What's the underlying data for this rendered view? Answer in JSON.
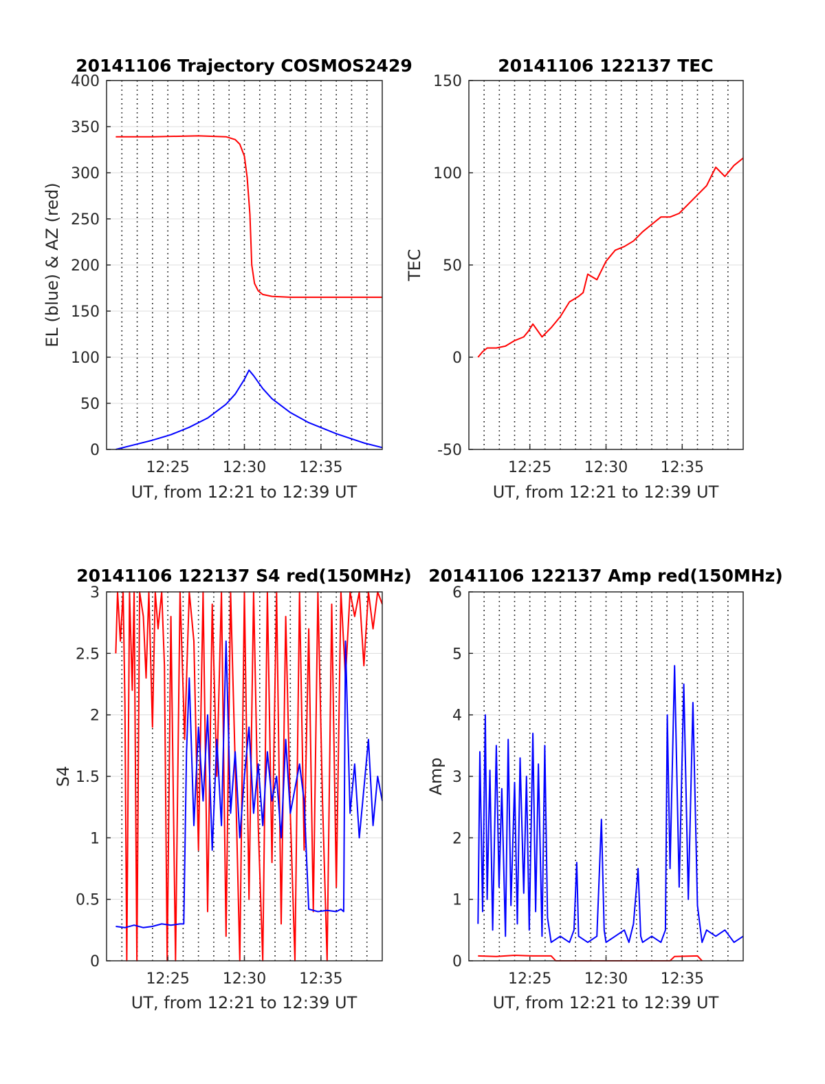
{
  "chart_data": [
    {
      "type": "line",
      "title": "20141106 Trajectory COSMOS2429",
      "xlabel": "UT, from 12:21 to 12:39 UT",
      "ylabel": "EL (blue) & AZ (red)",
      "xlim": [
        12.35,
        12.65
      ],
      "ylim": [
        0,
        400
      ],
      "yticks": [
        0,
        50,
        100,
        150,
        200,
        250,
        300,
        350,
        400
      ],
      "xticks": [
        {
          "value": 12.4167,
          "label": "12:25"
        },
        {
          "value": 12.5,
          "label": "12:30"
        },
        {
          "value": 12.5833,
          "label": "12:35"
        }
      ],
      "grid": "dotted",
      "series": [
        {
          "color": "#ff0000",
          "x": [
            12.36,
            12.4,
            12.45,
            12.48,
            12.49,
            12.495,
            12.5,
            12.503,
            12.506,
            12.508,
            12.511,
            12.515,
            12.52,
            12.53,
            12.55,
            12.6,
            12.65
          ],
          "y": [
            339,
            339,
            340,
            339,
            336,
            331,
            318,
            295,
            255,
            200,
            180,
            172,
            168,
            166,
            165,
            165,
            165
          ]
        },
        {
          "color": "#0000ff",
          "x": [
            12.36,
            12.38,
            12.4,
            12.42,
            12.44,
            12.46,
            12.48,
            12.49,
            12.5,
            12.505,
            12.51,
            12.52,
            12.53,
            12.55,
            12.57,
            12.6,
            12.63,
            12.65
          ],
          "y": [
            0,
            5,
            10,
            16,
            24,
            34,
            49,
            60,
            76,
            86,
            80,
            66,
            55,
            40,
            29,
            17,
            7,
            2
          ]
        }
      ]
    },
    {
      "type": "line",
      "title": "20141106 122137 TEC",
      "xlabel": "UT, from 12:21 to 12:39 UT",
      "ylabel": "TEC",
      "xlim": [
        12.35,
        12.65
      ],
      "ylim": [
        -50,
        150
      ],
      "yticks": [
        -50,
        0,
        50,
        100,
        150
      ],
      "xticks": [
        {
          "value": 12.4167,
          "label": "12:25"
        },
        {
          "value": 12.5,
          "label": "12:30"
        },
        {
          "value": 12.5833,
          "label": "12:35"
        }
      ],
      "grid": "dotted",
      "series": [
        {
          "color": "#ff0000",
          "x": [
            12.36,
            12.365,
            12.37,
            12.38,
            12.39,
            12.4,
            12.41,
            12.415,
            12.42,
            12.43,
            12.44,
            12.45,
            12.46,
            12.47,
            12.475,
            12.48,
            12.49,
            12.5,
            12.51,
            12.52,
            12.53,
            12.54,
            12.55,
            12.56,
            12.57,
            12.58,
            12.59,
            12.6,
            12.61,
            12.615,
            12.62,
            12.63,
            12.64,
            12.65
          ],
          "y": [
            0,
            3,
            5,
            5,
            6,
            9,
            11,
            14,
            18,
            11,
            16,
            22,
            30,
            33,
            35,
            45,
            42,
            52,
            58,
            60,
            63,
            68,
            72,
            76,
            76,
            78,
            83,
            88,
            93,
            98,
            103,
            98,
            104,
            108
          ]
        }
      ]
    },
    {
      "type": "line",
      "title": "20141106 122137 S4 red(150MHz)",
      "xlabel": "UT, from 12:21 to 12:39 UT",
      "ylabel": "S4",
      "xlim": [
        12.35,
        12.65
      ],
      "ylim": [
        0,
        3
      ],
      "yticks": [
        0,
        0.5,
        1,
        1.5,
        2,
        2.5,
        3
      ],
      "xticks": [
        {
          "value": 12.4167,
          "label": "12:25"
        },
        {
          "value": 12.5,
          "label": "12:30"
        },
        {
          "value": 12.5833,
          "label": "12:35"
        }
      ],
      "grid": "dotted",
      "series": [
        {
          "color": "#ff0000",
          "x": [
            12.36,
            12.362,
            12.365,
            12.368,
            12.37,
            12.372,
            12.375,
            12.378,
            12.38,
            12.383,
            12.386,
            12.39,
            12.393,
            12.396,
            12.4,
            12.403,
            12.406,
            12.41,
            12.413,
            12.416,
            12.42,
            12.425,
            12.43,
            12.435,
            12.44,
            12.445,
            12.45,
            12.455,
            12.46,
            12.465,
            12.47,
            12.475,
            12.48,
            12.485,
            12.49,
            12.495,
            12.5,
            12.505,
            12.51,
            12.515,
            12.52,
            12.525,
            12.53,
            12.535,
            12.54,
            12.545,
            12.55,
            12.555,
            12.56,
            12.565,
            12.57,
            12.575,
            12.58,
            12.585,
            12.59,
            12.595,
            12.6,
            12.605,
            12.61,
            12.615,
            12.62,
            12.625,
            12.63,
            12.635,
            12.64,
            12.645,
            12.65
          ],
          "y": [
            2.5,
            3,
            2.6,
            3,
            2.1,
            0,
            3,
            2.2,
            3,
            0,
            3,
            2.8,
            2.3,
            3,
            1.9,
            3,
            2.7,
            3,
            2.4,
            0,
            2.8,
            0,
            3,
            1.8,
            3,
            2.6,
            0.9,
            3,
            0.4,
            2.9,
            1.5,
            3,
            0.2,
            3,
            1.6,
            0,
            3,
            0.5,
            3,
            1.1,
            0,
            3,
            0.8,
            3,
            0.3,
            2.8,
            1.2,
            0,
            3,
            0.9,
            2.7,
            0.4,
            3,
            1.3,
            0,
            2.9,
            0.6,
            3,
            2.3,
            3,
            2.8,
            3,
            2.4,
            3,
            2.7,
            3,
            2.9
          ]
        },
        {
          "color": "#0000ff",
          "x": [
            12.36,
            12.37,
            12.38,
            12.39,
            12.4,
            12.41,
            12.42,
            12.43,
            12.434,
            12.437,
            12.44,
            12.445,
            12.45,
            12.455,
            12.46,
            12.465,
            12.47,
            12.475,
            12.48,
            12.485,
            12.49,
            12.495,
            12.5,
            12.505,
            12.51,
            12.515,
            12.52,
            12.525,
            12.53,
            12.535,
            12.54,
            12.545,
            12.55,
            12.555,
            12.56,
            12.565,
            12.57,
            12.58,
            12.59,
            12.6,
            12.605,
            12.608,
            12.61,
            12.615,
            12.62,
            12.625,
            12.63,
            12.635,
            12.64,
            12.645,
            12.65
          ],
          "y": [
            0.28,
            0.27,
            0.29,
            0.27,
            0.28,
            0.3,
            0.29,
            0.3,
            0.3,
            1.7,
            2.3,
            1.1,
            1.9,
            1.3,
            2.0,
            0.9,
            1.8,
            1.1,
            2.6,
            1.2,
            1.7,
            1.0,
            1.5,
            1.9,
            1.2,
            1.6,
            1.1,
            1.7,
            1.3,
            1.5,
            1.0,
            1.8,
            1.2,
            1.4,
            1.6,
            1.3,
            0.42,
            0.4,
            0.41,
            0.4,
            0.42,
            0.4,
            2.6,
            1.2,
            1.6,
            1.0,
            1.4,
            1.8,
            1.1,
            1.5,
            1.3
          ]
        }
      ]
    },
    {
      "type": "line",
      "title": "20141106 122137 Amp red(150MHz)",
      "xlabel": "UT, from 12:21 to 12:39 UT",
      "ylabel": "Amp",
      "xlim": [
        12.35,
        12.65
      ],
      "ylim": [
        0,
        6
      ],
      "yticks": [
        0,
        1,
        2,
        3,
        4,
        5,
        6
      ],
      "xticks": [
        {
          "value": 12.4167,
          "label": "12:25"
        },
        {
          "value": 12.5,
          "label": "12:30"
        },
        {
          "value": 12.5833,
          "label": "12:35"
        }
      ],
      "grid": "dotted",
      "series": [
        {
          "color": "#0000ff",
          "x": [
            12.36,
            12.362,
            12.365,
            12.368,
            12.37,
            12.373,
            12.376,
            12.38,
            12.383,
            12.386,
            12.39,
            12.393,
            12.396,
            12.4,
            12.403,
            12.406,
            12.41,
            12.413,
            12.416,
            12.42,
            12.423,
            12.426,
            12.43,
            12.433,
            12.436,
            12.44,
            12.45,
            12.46,
            12.465,
            12.468,
            12.47,
            12.48,
            12.49,
            12.495,
            12.498,
            12.5,
            12.51,
            12.52,
            12.525,
            12.53,
            12.535,
            12.538,
            12.54,
            12.55,
            12.56,
            12.565,
            12.567,
            12.57,
            12.575,
            12.58,
            12.585,
            12.59,
            12.595,
            12.6,
            12.605,
            12.61,
            12.62,
            12.63,
            12.64,
            12.65
          ],
          "y": [
            0.6,
            3.4,
            0.8,
            4.0,
            1.0,
            3.1,
            0.5,
            3.5,
            1.2,
            2.8,
            0.4,
            3.6,
            0.9,
            2.9,
            0.6,
            3.3,
            1.1,
            3.0,
            0.5,
            3.7,
            0.8,
            3.2,
            0.4,
            3.5,
            0.7,
            0.3,
            0.4,
            0.3,
            0.5,
            1.6,
            0.4,
            0.3,
            0.4,
            2.3,
            0.5,
            0.3,
            0.4,
            0.5,
            0.3,
            0.6,
            1.5,
            0.4,
            0.3,
            0.4,
            0.3,
            0.5,
            4.0,
            1.5,
            4.8,
            1.2,
            4.5,
            1.0,
            4.2,
            0.9,
            0.3,
            0.5,
            0.4,
            0.5,
            0.3,
            0.4
          ]
        },
        {
          "color": "#ff0000",
          "x": [
            12.36,
            12.38,
            12.4,
            12.42,
            12.44,
            12.445,
            12.57,
            12.575,
            12.6,
            12.605
          ],
          "y": [
            0.08,
            0.07,
            0.09,
            0.08,
            0.08,
            0,
            0,
            0.07,
            0.08,
            0
          ]
        }
      ]
    }
  ]
}
